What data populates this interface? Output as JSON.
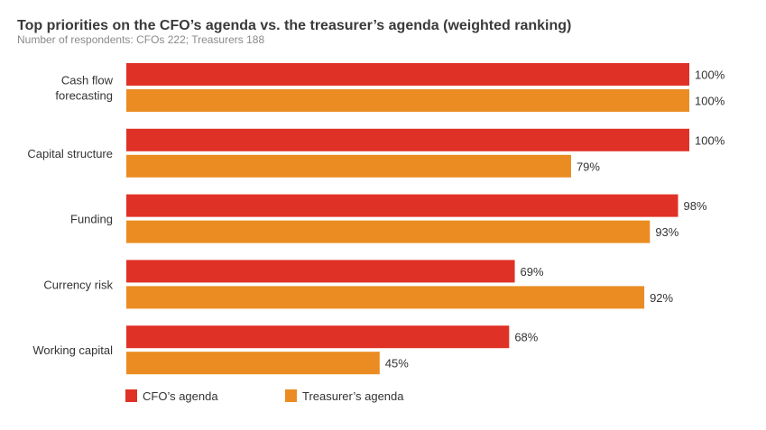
{
  "chart_data": {
    "type": "bar",
    "orientation": "horizontal",
    "title": "Top priorities on the CFO’s agenda vs. the treasurer’s agenda (weighted ranking)",
    "subtitle": "Number of respondents: CFOs 222; Treasurers 188",
    "categories": [
      [
        "Cash flow",
        "forecasting"
      ],
      [
        "Capital structure"
      ],
      [
        "Funding"
      ],
      [
        "Currency risk"
      ],
      [
        "Working capital"
      ]
    ],
    "series": [
      {
        "name": "CFO’s agenda",
        "color": "#E03127",
        "values": [
          100,
          100,
          98,
          69,
          68
        ]
      },
      {
        "name": "Treasurer’s agenda",
        "color": "#EA8C22",
        "values": [
          100,
          79,
          93,
          92,
          45
        ]
      }
    ],
    "value_suffix": "%",
    "xlim": [
      0,
      100
    ],
    "grid": false,
    "legend_placement": "bottom-left"
  }
}
